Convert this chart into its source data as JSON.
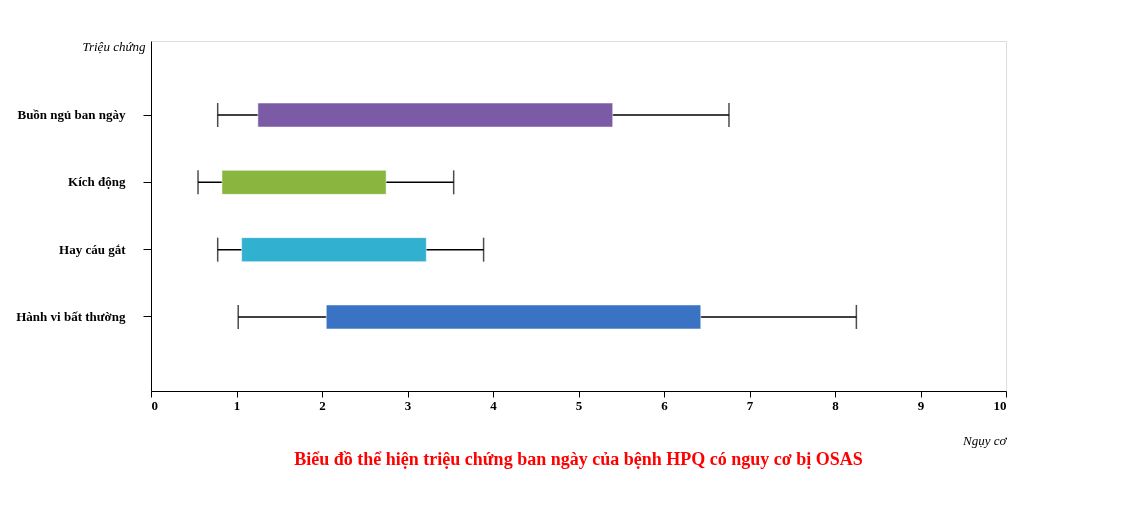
{
  "chart_data": {
    "type": "bar",
    "orientation": "horizontal",
    "title": "Biểu đồ thể hiện triệu chứng ban ngày của bệnh HPQ có nguy cơ bị OSAS",
    "xlabel": "Ngụy cơ",
    "ylabel": "Triệu chứng",
    "categories": [
      "Buồn ngủ ban ngày",
      "Kích động",
      "Hay cáu gắt",
      "Hành vi bất thường"
    ],
    "base": [
      1.25,
      0.83,
      1.06,
      2.05
    ],
    "values": [
      4.15,
      1.92,
      2.16,
      4.38
    ],
    "colors": [
      "#7b5aa6",
      "#8ab640",
      "#31b0d0",
      "#3a72c4"
    ],
    "errors": [
      [
        0.78,
        6.76
      ],
      [
        0.55,
        3.54
      ],
      [
        0.78,
        3.89
      ],
      [
        1.02,
        8.25
      ]
    ],
    "xlim": [
      0,
      10
    ],
    "xticks": [
      0,
      1,
      2,
      3,
      4,
      5,
      6,
      7,
      8,
      9,
      10
    ],
    "grid": false
  }
}
